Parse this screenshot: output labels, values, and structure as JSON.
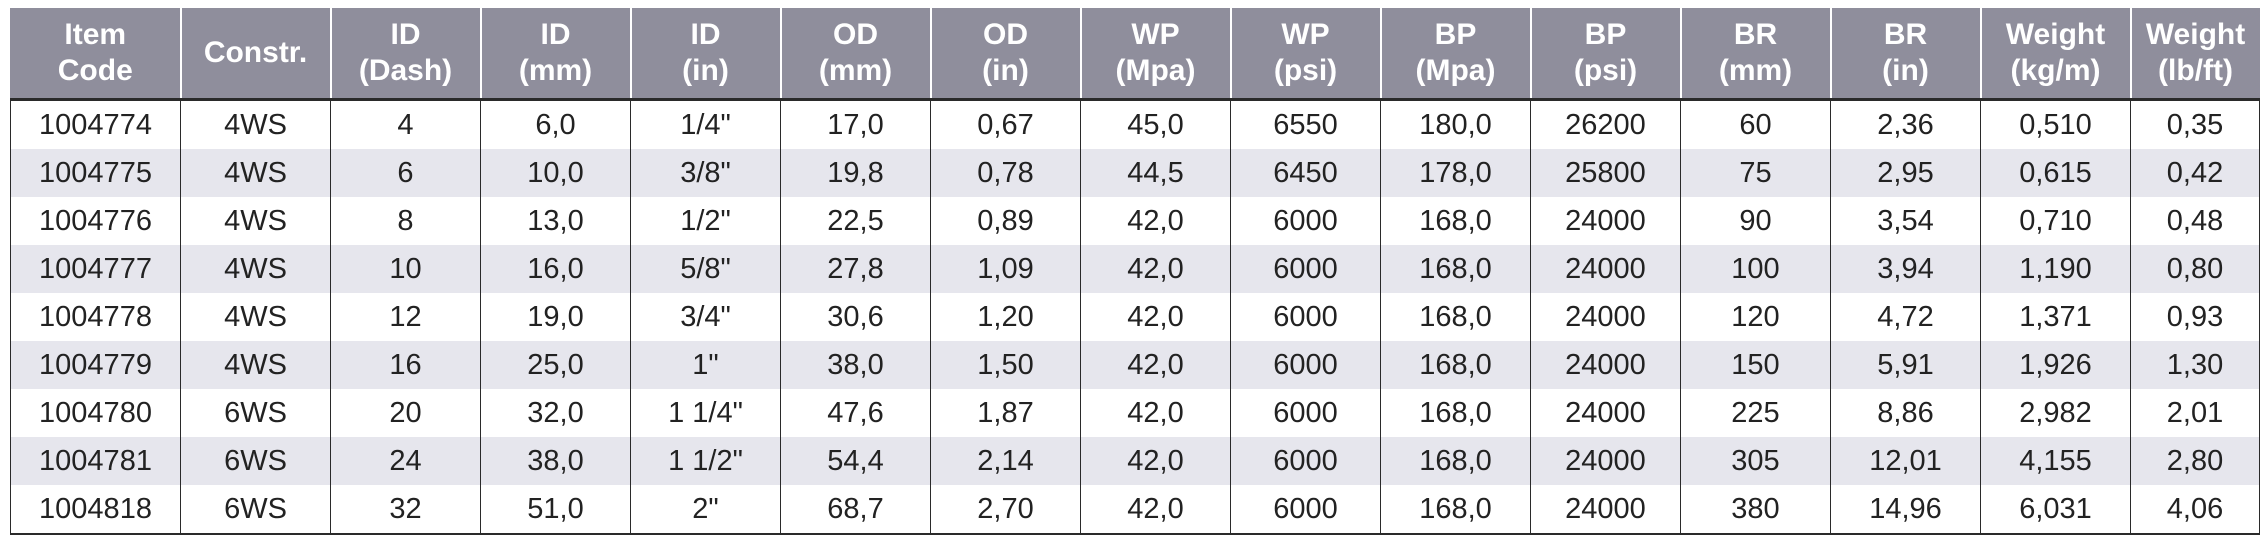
{
  "table": {
    "headers": [
      [
        "Item",
        "Code"
      ],
      [
        "Constr.",
        ""
      ],
      [
        "ID",
        "(Dash)"
      ],
      [
        "ID",
        "(mm)"
      ],
      [
        "ID",
        "(in)"
      ],
      [
        "OD",
        "(mm)"
      ],
      [
        "OD",
        "(in)"
      ],
      [
        "WP",
        "(Mpa)"
      ],
      [
        "WP",
        "(psi)"
      ],
      [
        "BP",
        "(Mpa)"
      ],
      [
        "BP",
        "(psi)"
      ],
      [
        "BR",
        "(mm)"
      ],
      [
        "BR",
        "(in)"
      ],
      [
        "Weight",
        "(kg/m)"
      ],
      [
        "Weight",
        "(lb/ft)"
      ]
    ],
    "rows": [
      [
        "1004774",
        "4WS",
        "4",
        "6,0",
        "1/4\"",
        "17,0",
        "0,67",
        "45,0",
        "6550",
        "180,0",
        "26200",
        "60",
        "2,36",
        "0,510",
        "0,35"
      ],
      [
        "1004775",
        "4WS",
        "6",
        "10,0",
        "3/8\"",
        "19,8",
        "0,78",
        "44,5",
        "6450",
        "178,0",
        "25800",
        "75",
        "2,95",
        "0,615",
        "0,42"
      ],
      [
        "1004776",
        "4WS",
        "8",
        "13,0",
        "1/2\"",
        "22,5",
        "0,89",
        "42,0",
        "6000",
        "168,0",
        "24000",
        "90",
        "3,54",
        "0,710",
        "0,48"
      ],
      [
        "1004777",
        "4WS",
        "10",
        "16,0",
        "5/8\"",
        "27,8",
        "1,09",
        "42,0",
        "6000",
        "168,0",
        "24000",
        "100",
        "3,94",
        "1,190",
        "0,80"
      ],
      [
        "1004778",
        "4WS",
        "12",
        "19,0",
        "3/4\"",
        "30,6",
        "1,20",
        "42,0",
        "6000",
        "168,0",
        "24000",
        "120",
        "4,72",
        "1,371",
        "0,93"
      ],
      [
        "1004779",
        "4WS",
        "16",
        "25,0",
        "1\"",
        "38,0",
        "1,50",
        "42,0",
        "6000",
        "168,0",
        "24000",
        "150",
        "5,91",
        "1,926",
        "1,30"
      ],
      [
        "1004780",
        "6WS",
        "20",
        "32,0",
        "1 1/4\"",
        "47,6",
        "1,87",
        "42,0",
        "6000",
        "168,0",
        "24000",
        "225",
        "8,86",
        "2,982",
        "2,01"
      ],
      [
        "1004781",
        "6WS",
        "24",
        "38,0",
        "1 1/2\"",
        "54,4",
        "2,14",
        "42,0",
        "6000",
        "168,0",
        "24000",
        "305",
        "12,01",
        "4,155",
        "2,80"
      ],
      [
        "1004818",
        "6WS",
        "32",
        "51,0",
        "2\"",
        "68,7",
        "2,70",
        "42,0",
        "6000",
        "168,0",
        "24000",
        "380",
        "14,96",
        "6,031",
        "4,06"
      ]
    ]
  }
}
